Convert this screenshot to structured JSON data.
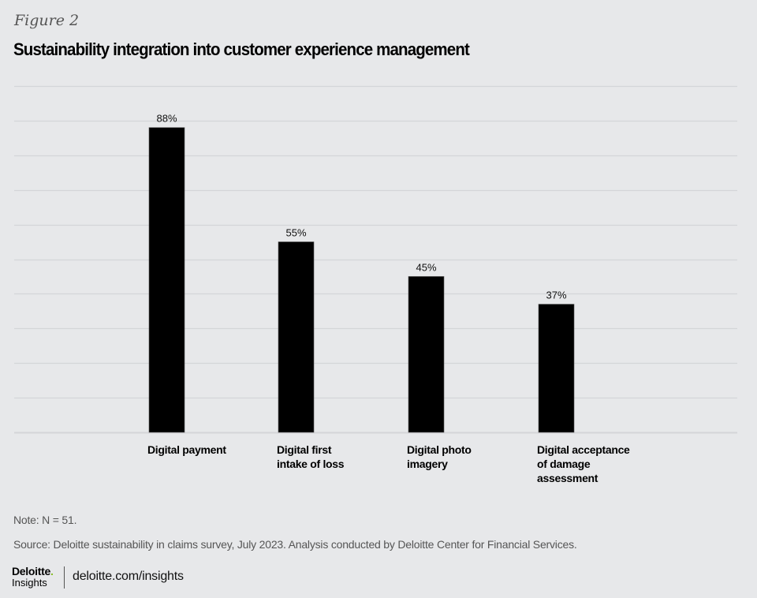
{
  "figure_label": "Figure 2",
  "title": "Sustainability integration into customer experience management",
  "chart_data": {
    "type": "bar",
    "title": "Sustainability integration into customer experience management",
    "categories": [
      "Digital payment",
      "Digital first intake of loss",
      "Digital photo imagery",
      "Digital acceptance of damage assessment"
    ],
    "category_lines": [
      [
        "Digital payment"
      ],
      [
        "Digital first",
        "intake of loss"
      ],
      [
        "Digital photo",
        "imagery"
      ],
      [
        "Digital acceptance",
        "of damage",
        "assessment"
      ]
    ],
    "values": [
      88,
      55,
      45,
      37
    ],
    "value_labels": [
      "88%",
      "55%",
      "45%",
      "37%"
    ],
    "xlabel": "",
    "ylabel": "",
    "ylim": [
      0,
      100
    ],
    "grid": true,
    "grid_step": 10,
    "bar_color": "#000000",
    "grid_color": "#d4d5d8"
  },
  "note": "Note: N = 51.",
  "source": "Source: Deloitte sustainability in claims survey, July 2023. Analysis conducted by Deloitte Center for Financial Services.",
  "footer": {
    "brand": "Deloitte",
    "brand_dot": ".",
    "brand_sub": "Insights",
    "url": "deloitte.com/insights",
    "accent_color": "#86bc25"
  }
}
